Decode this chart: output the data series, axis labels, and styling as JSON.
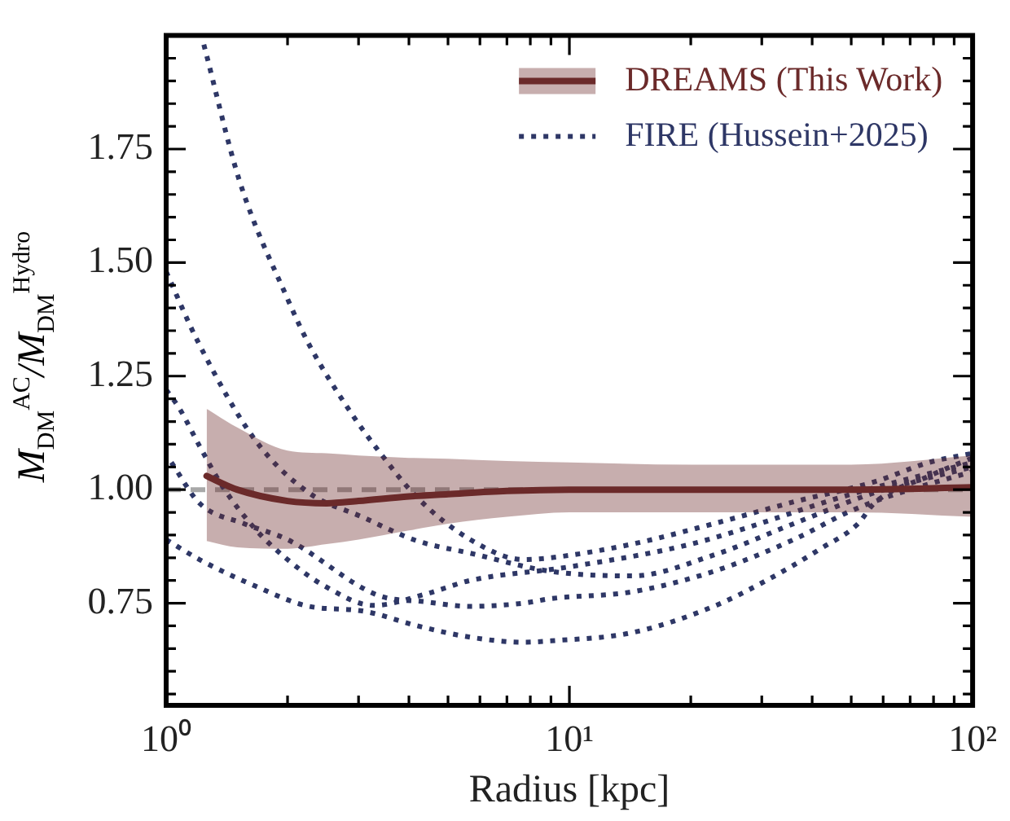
{
  "chart_data": {
    "type": "line",
    "xlabel": "Radius [kpc]",
    "ylabel": "M$_{DM}$$^{AC}$/M$_{DM}$$^{Hydro}$",
    "log": "x",
    "grid": false,
    "legend": "top right",
    "marker": "none",
    "xlim": [
      1,
      100
    ],
    "ylim": [
      0.525,
      2.0
    ],
    "xticks": [
      {
        "value": 1,
        "label": "10⁰"
      },
      {
        "value": 2,
        "label": null
      },
      {
        "value": 3,
        "label": null
      },
      {
        "value": 4,
        "label": null
      },
      {
        "value": 5,
        "label": null
      },
      {
        "value": 6,
        "label": null
      },
      {
        "value": 7,
        "label": null
      },
      {
        "value": 8,
        "label": null
      },
      {
        "value": 9,
        "label": null
      },
      {
        "value": 10,
        "label": "10¹"
      },
      {
        "value": 20,
        "label": null
      },
      {
        "value": 30,
        "label": null
      },
      {
        "value": 40,
        "label": null
      },
      {
        "value": 50,
        "label": null
      },
      {
        "value": 60,
        "label": null
      },
      {
        "value": 70,
        "label": null
      },
      {
        "value": 80,
        "label": null
      },
      {
        "value": 90,
        "label": null
      },
      {
        "value": 100,
        "label": "10²"
      }
    ],
    "yticks": [
      {
        "value": 0.55,
        "label": null
      },
      {
        "value": 0.6,
        "label": null
      },
      {
        "value": 0.65,
        "label": null
      },
      {
        "value": 0.7,
        "label": null
      },
      {
        "value": 0.75,
        "label": "0.75"
      },
      {
        "value": 0.8,
        "label": null
      },
      {
        "value": 0.85,
        "label": null
      },
      {
        "value": 0.9,
        "label": null
      },
      {
        "value": 0.95,
        "label": null
      },
      {
        "value": 1,
        "label": "1.00"
      },
      {
        "value": 1.05,
        "label": null
      },
      {
        "value": 1.1,
        "label": null
      },
      {
        "value": 1.15,
        "label": null
      },
      {
        "value": 1.2,
        "label": null
      },
      {
        "value": 1.25,
        "label": "1.25"
      },
      {
        "value": 1.3,
        "label": null
      },
      {
        "value": 1.35,
        "label": null
      },
      {
        "value": 1.4,
        "label": null
      },
      {
        "value": 1.45,
        "label": null
      },
      {
        "value": 1.5,
        "label": "1.50"
      },
      {
        "value": 1.55,
        "label": null
      },
      {
        "value": 1.6,
        "label": null
      },
      {
        "value": 1.65,
        "label": null
      },
      {
        "value": 1.7,
        "label": null
      },
      {
        "value": 1.75,
        "label": "1.75"
      },
      {
        "value": 1.8,
        "label": null
      },
      {
        "value": 1.85,
        "label": null
      },
      {
        "value": 1.9,
        "label": null
      },
      {
        "value": 1.95,
        "label": null
      }
    ],
    "ref_lines": [
      {
        "axis": "y",
        "value": 1,
        "color": "#a8a8a8",
        "line_style": "dashed"
      }
    ],
    "series": [
      {
        "name": "DREAMS (This Work)",
        "color": "#6b2a2a",
        "line_style": "solid",
        "x": [
          1.26,
          1.5,
          2,
          2.5,
          3,
          4,
          5,
          7,
          10,
          20,
          50,
          100
        ],
        "values": [
          1.03,
          1.0,
          0.975,
          0.97,
          0.975,
          0.985,
          0.99,
          0.997,
          1.0,
          1.0,
          1.0,
          1.005
        ],
        "lower": [
          0.887,
          0.873,
          0.87,
          0.88,
          0.89,
          0.91,
          0.925,
          0.94,
          0.95,
          0.95,
          0.95,
          0.94
        ],
        "upper": [
          1.178,
          1.137,
          1.086,
          1.08,
          1.075,
          1.07,
          1.068,
          1.063,
          1.06,
          1.055,
          1.055,
          1.075
        ]
      },
      {
        "name": "FIRE (Hussein+2025)",
        "color": "#2e3766",
        "line_style": "dotted",
        "x": [
          1.24,
          1.52,
          2,
          2.26,
          2.9,
          3.36,
          4.19,
          5.68,
          7.7,
          9,
          14.3,
          22.8,
          36,
          57,
          78,
          100
        ],
        "values": [
          1.98,
          1.68,
          1.42,
          1.32,
          1.164,
          1.086,
          0.983,
          0.89,
          0.846,
          0.85,
          0.88,
          0.925,
          0.973,
          1.017,
          1.06,
          1.08
        ]
      },
      {
        "color": "#2e3766",
        "line_style": "dotted",
        "x": [
          1,
          1.2,
          1.66,
          2.26,
          3.06,
          4.2,
          5.68,
          9,
          14.3,
          22.8,
          36,
          57,
          100
        ],
        "values": [
          1.48,
          1.325,
          1.11,
          0.993,
          0.94,
          0.887,
          0.86,
          0.82,
          0.81,
          0.856,
          0.925,
          0.993,
          1.05
        ]
      },
      {
        "color": "#2e3766",
        "line_style": "dotted",
        "x": [
          1,
          1.08,
          1.21,
          1.38,
          1.66,
          2,
          2.47,
          3.27,
          4.4,
          5.68,
          10,
          20,
          50,
          100
        ],
        "values": [
          1.22,
          1.178,
          1.096,
          1.007,
          0.914,
          0.846,
          0.788,
          0.745,
          0.77,
          0.8,
          0.83,
          0.88,
          0.99,
          1.06
        ]
      },
      {
        "color": "#2e3766",
        "line_style": "dotted",
        "x": [
          1.03,
          1.21,
          1.56,
          2,
          3.36,
          4.4,
          5.68,
          7.7,
          9,
          14.3,
          22.8,
          36,
          49,
          61,
          100
        ],
        "values": [
          1.06,
          0.97,
          0.925,
          0.89,
          0.767,
          0.753,
          0.743,
          0.75,
          0.76,
          0.775,
          0.82,
          0.89,
          0.95,
          0.983,
          1.04
        ]
      },
      {
        "color": "#2e3766",
        "line_style": "dotted",
        "x": [
          1,
          1.21,
          1.66,
          2.26,
          3.06,
          4.2,
          5.68,
          7.7,
          9,
          14.3,
          22.8,
          30.8,
          42,
          52,
          57,
          78,
          100
        ],
        "values": [
          0.89,
          0.846,
          0.788,
          0.743,
          0.733,
          0.7,
          0.675,
          0.664,
          0.667,
          0.685,
          0.743,
          0.8,
          0.87,
          0.925,
          0.97,
          1.03,
          1.07
        ]
      }
    ]
  }
}
